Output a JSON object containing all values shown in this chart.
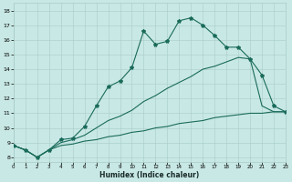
{
  "xlabel": "Humidex (Indice chaleur)",
  "bg_color": "#c8e8e5",
  "grid_color": "#a8ccc8",
  "line_color": "#1a6b5a",
  "xlim": [
    0,
    23
  ],
  "ylim": [
    7.7,
    18.5
  ],
  "xticks": [
    0,
    1,
    2,
    3,
    4,
    5,
    6,
    7,
    8,
    9,
    10,
    11,
    12,
    13,
    14,
    15,
    16,
    17,
    18,
    19,
    20,
    21,
    22,
    23
  ],
  "yticks": [
    8,
    9,
    10,
    11,
    12,
    13,
    14,
    15,
    16,
    17,
    18
  ],
  "s1_x": [
    0,
    1,
    2,
    3,
    4,
    5,
    6,
    7,
    8,
    9,
    10,
    11,
    12,
    13,
    14,
    15,
    16,
    17,
    18,
    19,
    20,
    21,
    22,
    23
  ],
  "s1_y": [
    8.8,
    8.5,
    8.0,
    8.5,
    9.2,
    9.3,
    10.1,
    11.5,
    12.8,
    13.2,
    14.1,
    16.6,
    15.7,
    15.9,
    17.3,
    17.5,
    17.0,
    16.3,
    15.5,
    15.5,
    14.7,
    13.6,
    11.5,
    11.1
  ],
  "s2_x": [
    0,
    1,
    2,
    3,
    4,
    5,
    6,
    7,
    8,
    9,
    10,
    11,
    12,
    13,
    14,
    15,
    16,
    17,
    18,
    19,
    20,
    21,
    22,
    23
  ],
  "s2_y": [
    8.8,
    8.5,
    8.0,
    8.5,
    9.0,
    9.2,
    9.5,
    10.0,
    10.5,
    10.8,
    11.2,
    11.8,
    12.2,
    12.7,
    13.1,
    13.5,
    14.0,
    14.2,
    14.5,
    14.8,
    14.7,
    11.5,
    11.1,
    11.1
  ],
  "s3_x": [
    0,
    1,
    2,
    3,
    4,
    5,
    6,
    7,
    8,
    9,
    10,
    11,
    12,
    13,
    14,
    15,
    16,
    17,
    18,
    19,
    20,
    21,
    22,
    23
  ],
  "s3_y": [
    8.8,
    8.5,
    8.0,
    8.5,
    8.8,
    8.9,
    9.1,
    9.2,
    9.4,
    9.5,
    9.7,
    9.8,
    10.0,
    10.1,
    10.3,
    10.4,
    10.5,
    10.7,
    10.8,
    10.9,
    11.0,
    11.0,
    11.1,
    11.1
  ]
}
